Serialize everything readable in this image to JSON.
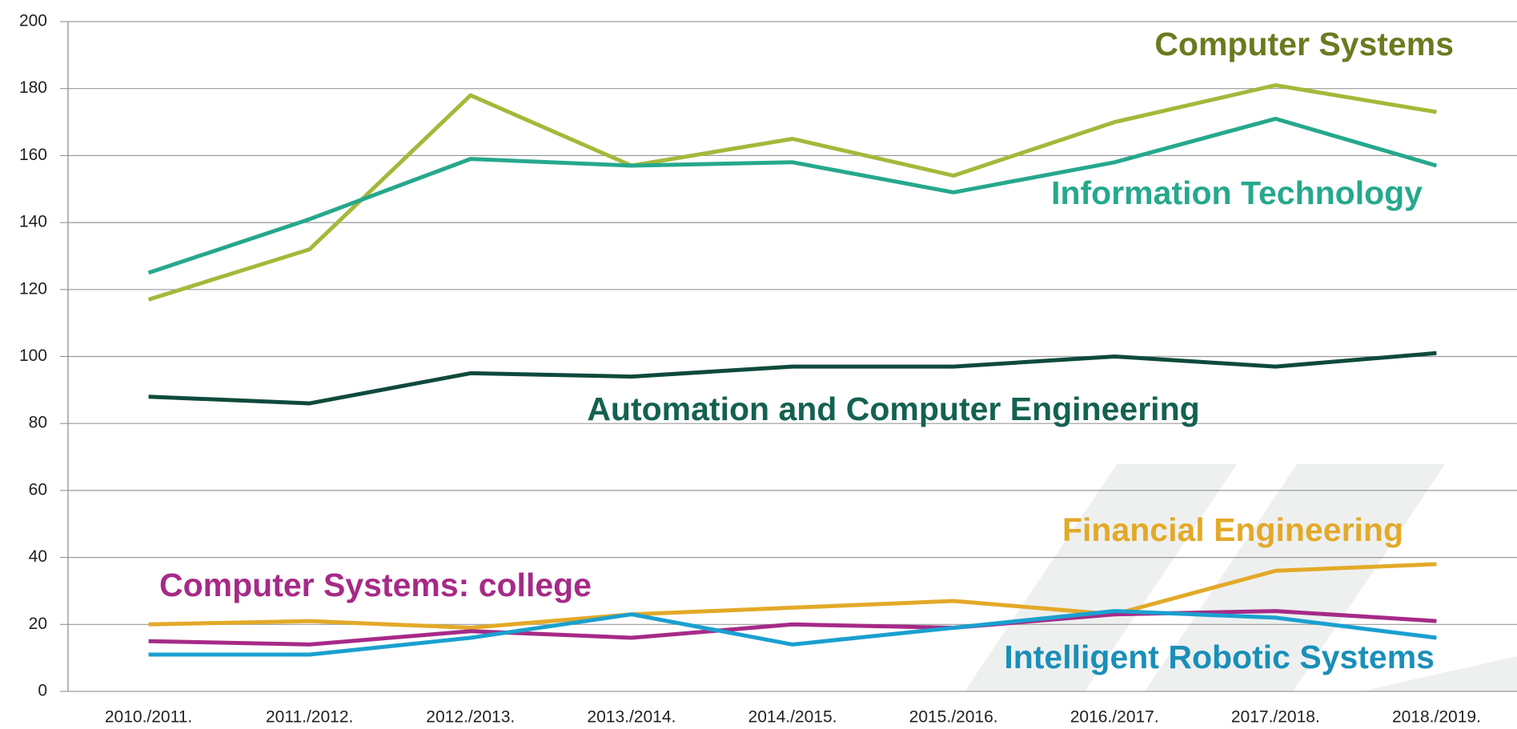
{
  "chart_data": {
    "type": "line",
    "categories": [
      "2010./2011.",
      "2011./2012.",
      "2012./2013.",
      "2013./2014.",
      "2014./2015.",
      "2015./2016.",
      "2016./2017.",
      "2017./2018.",
      "2018./2019."
    ],
    "series": [
      {
        "name": "Computer Systems",
        "color": "#a5b83a",
        "label_color": "#6b7a1f",
        "values": [
          117,
          132,
          178,
          157,
          165,
          154,
          170,
          181,
          173
        ]
      },
      {
        "name": "Information Technology",
        "color": "#26a88d",
        "label_color": "#26a88d",
        "values": [
          125,
          141,
          159,
          157,
          158,
          149,
          158,
          171,
          157
        ]
      },
      {
        "name": "Automation and Computer Engineering",
        "color": "#0f4a3c",
        "label_color": "#146150",
        "values": [
          88,
          86,
          95,
          94,
          97,
          97,
          100,
          97,
          101
        ]
      },
      {
        "name": "Financial Engineering",
        "color": "#e3a928",
        "label_color": "#e3a928",
        "values": [
          20,
          21,
          19,
          23,
          25,
          27,
          23,
          36,
          38
        ]
      },
      {
        "name": "Computer Systems: college",
        "color": "#a62a87",
        "label_color": "#a62a87",
        "values": [
          15,
          14,
          18,
          16,
          20,
          19,
          23,
          24,
          21
        ]
      },
      {
        "name": "Intelligent Robotic Systems",
        "color": "#1aa0d0",
        "label_color": "#1a8fb8",
        "values": [
          11,
          11,
          16,
          23,
          14,
          19,
          24,
          22,
          16
        ]
      }
    ],
    "ylim": [
      0,
      200
    ],
    "yticks": [
      0,
      20,
      40,
      60,
      80,
      100,
      120,
      140,
      160,
      180,
      200
    ],
    "grid": true
  }
}
